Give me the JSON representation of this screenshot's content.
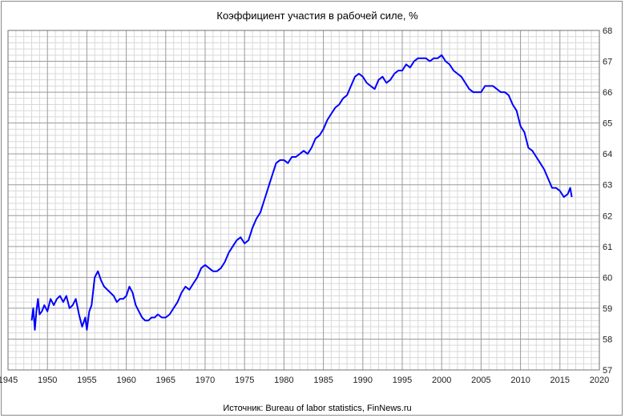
{
  "chart_data": {
    "type": "line",
    "title": "Коэффициент  участия в рабочей  силе, %",
    "source": "Источник:  Bureau  of labor  statistics, FinNews.ru",
    "xlim": [
      1945,
      2020
    ],
    "ylim": [
      57,
      68
    ],
    "x_ticks": [
      "1945",
      "1950",
      "1955",
      "1960",
      "1965",
      "1970",
      "1975",
      "1980",
      "1985",
      "1990",
      "1995",
      "2000",
      "2005",
      "2010",
      "2015",
      "2020"
    ],
    "y_ticks": [
      "57",
      "58",
      "59",
      "60",
      "61",
      "62",
      "63",
      "64",
      "65",
      "66",
      "67",
      "68"
    ],
    "y_axis_side": "right",
    "grid": true,
    "legend": "none",
    "line_color": "#0000ff",
    "series": [
      {
        "x": [
          1948.0,
          1948.2,
          1948.4,
          1948.6,
          1948.8,
          1949.0,
          1949.3,
          1949.6,
          1950.0,
          1950.4,
          1950.8,
          1951.2,
          1951.6,
          1952.0,
          1952.4,
          1952.8,
          1953.2,
          1953.6,
          1954.0,
          1954.4,
          1954.8,
          1955.0,
          1955.3,
          1955.6,
          1956.0,
          1956.4,
          1956.8,
          1957.2,
          1957.6,
          1958.0,
          1958.4,
          1958.8,
          1959.2,
          1959.6,
          1960.0,
          1960.4,
          1960.8,
          1961.2,
          1961.6,
          1962.0,
          1962.4,
          1962.8,
          1963.2,
          1963.6,
          1964.0,
          1964.5,
          1965.0,
          1965.5,
          1966.0,
          1966.5,
          1967.0,
          1967.5,
          1968.0,
          1968.5,
          1969.0,
          1969.5,
          1970.0,
          1970.5,
          1971.0,
          1971.5,
          1972.0,
          1972.5,
          1973.0,
          1973.5,
          1974.0,
          1974.5,
          1975.0,
          1975.5,
          1976.0,
          1976.5,
          1977.0,
          1977.5,
          1978.0,
          1978.5,
          1979.0,
          1979.5,
          1980.0,
          1980.5,
          1981.0,
          1981.5,
          1982.0,
          1982.5,
          1983.0,
          1983.5,
          1984.0,
          1984.5,
          1985.0,
          1985.5,
          1986.0,
          1986.5,
          1987.0,
          1987.5,
          1988.0,
          1988.5,
          1989.0,
          1989.5,
          1990.0,
          1990.5,
          1991.0,
          1991.5,
          1992.0,
          1992.5,
          1993.0,
          1993.5,
          1994.0,
          1994.5,
          1995.0,
          1995.5,
          1996.0,
          1996.5,
          1997.0,
          1997.5,
          1998.0,
          1998.5,
          1999.0,
          1999.5,
          2000.0,
          2000.5,
          2001.0,
          2001.5,
          2002.0,
          2002.5,
          2003.0,
          2003.5,
          2004.0,
          2004.5,
          2005.0,
          2005.5,
          2006.0,
          2006.5,
          2007.0,
          2007.5,
          2008.0,
          2008.5,
          2009.0,
          2009.5,
          2010.0,
          2010.5,
          2011.0,
          2011.5,
          2012.0,
          2012.5,
          2013.0,
          2013.5,
          2014.0,
          2014.5,
          2015.0,
          2015.5,
          2016.0,
          2016.3,
          2016.5
        ],
        "values": [
          58.6,
          59.0,
          58.3,
          58.9,
          59.3,
          58.8,
          58.9,
          59.1,
          58.9,
          59.3,
          59.1,
          59.3,
          59.4,
          59.2,
          59.4,
          59.0,
          59.1,
          59.3,
          58.8,
          58.4,
          58.7,
          58.3,
          58.9,
          59.1,
          60.0,
          60.2,
          59.9,
          59.7,
          59.6,
          59.5,
          59.4,
          59.2,
          59.3,
          59.3,
          59.4,
          59.7,
          59.5,
          59.1,
          58.9,
          58.7,
          58.6,
          58.6,
          58.7,
          58.7,
          58.8,
          58.7,
          58.7,
          58.8,
          59.0,
          59.2,
          59.5,
          59.7,
          59.6,
          59.8,
          60.0,
          60.3,
          60.4,
          60.3,
          60.2,
          60.2,
          60.3,
          60.5,
          60.8,
          61.0,
          61.2,
          61.3,
          61.1,
          61.2,
          61.6,
          61.9,
          62.1,
          62.5,
          62.9,
          63.3,
          63.7,
          63.8,
          63.8,
          63.7,
          63.9,
          63.9,
          64.0,
          64.1,
          64.0,
          64.2,
          64.5,
          64.6,
          64.8,
          65.1,
          65.3,
          65.5,
          65.6,
          65.8,
          65.9,
          66.2,
          66.5,
          66.6,
          66.5,
          66.3,
          66.2,
          66.1,
          66.4,
          66.5,
          66.3,
          66.4,
          66.6,
          66.7,
          66.7,
          66.9,
          66.8,
          67.0,
          67.1,
          67.1,
          67.1,
          67.0,
          67.1,
          67.1,
          67.2,
          67.0,
          66.9,
          66.7,
          66.6,
          66.5,
          66.3,
          66.1,
          66.0,
          66.0,
          66.0,
          66.2,
          66.2,
          66.2,
          66.1,
          66.0,
          66.0,
          65.9,
          65.6,
          65.4,
          64.9,
          64.7,
          64.2,
          64.1,
          63.9,
          63.7,
          63.5,
          63.2,
          62.9,
          62.9,
          62.8,
          62.6,
          62.7,
          62.9,
          62.6
        ]
      }
    ]
  }
}
